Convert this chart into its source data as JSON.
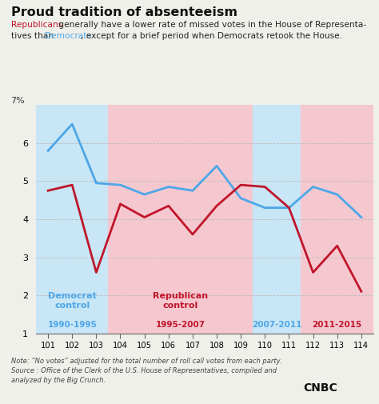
{
  "title": "Proud tradition of absenteeism",
  "x": [
    101,
    102,
    103,
    104,
    105,
    106,
    107,
    108,
    109,
    110,
    111,
    112,
    113,
    114
  ],
  "blue_line": [
    5.8,
    6.5,
    4.95,
    4.9,
    4.65,
    4.85,
    4.75,
    5.4,
    4.55,
    4.3,
    4.3,
    4.85,
    4.65,
    4.05
  ],
  "red_line": [
    4.75,
    4.9,
    2.6,
    4.4,
    4.05,
    4.35,
    3.6,
    4.35,
    4.9,
    4.85,
    4.3,
    2.6,
    3.3,
    2.1
  ],
  "ylim": [
    1,
    7
  ],
  "yticks": [
    1,
    2,
    3,
    4,
    5,
    6
  ],
  "blue_color": "#4da6e8",
  "red_color": "#c0152a",
  "background_color": "#f0f0eb",
  "regions": [
    {
      "xstart": 100.5,
      "xend": 103.5,
      "color": "#c8e6f5"
    },
    {
      "xstart": 103.5,
      "xend": 109.5,
      "color": "#f5c8d0"
    },
    {
      "xstart": 109.5,
      "xend": 111.5,
      "color": "#c8e6f5"
    },
    {
      "xstart": 111.5,
      "xend": 114.5,
      "color": "#f5c8d0"
    }
  ],
  "region_labels": [
    {
      "x": 102.0,
      "ctrl_text": "Democrat\ncontrol",
      "ctrl_color": "#4da6e8",
      "yr_text": "1990-1995",
      "yr_color": "#4da6e8"
    },
    {
      "x": 106.5,
      "ctrl_text": "Republican\ncontrol",
      "ctrl_color": "#c0152a",
      "yr_text": "1995-2007",
      "yr_color": "#c0152a"
    },
    {
      "x": 110.5,
      "ctrl_text": "",
      "ctrl_color": "#4da6e8",
      "yr_text": "2007-2011",
      "yr_color": "#4da6e8"
    },
    {
      "x": 113.0,
      "ctrl_text": "",
      "ctrl_color": "#c0152a",
      "yr_text": "2011-2015",
      "yr_color": "#c0152a"
    }
  ],
  "note": "Note: “No votes” adjusted for the total number of roll call votes from each party.\nSource : Office of the Clerk of the U.S. House of Representatives, compiled and\nanalyzed by the Big Crunch."
}
